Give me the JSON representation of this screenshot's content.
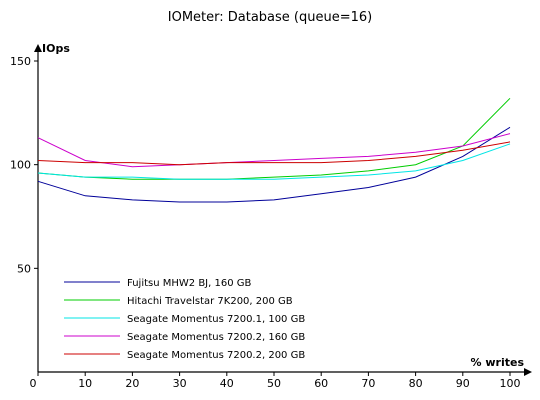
{
  "chart_data": {
    "type": "line",
    "title": "IOMeter: Database (queue=16)",
    "ylabel": "IOps",
    "xlabel": "% writes",
    "x": [
      0,
      10,
      20,
      30,
      40,
      50,
      60,
      70,
      80,
      90,
      100
    ],
    "xlim": [
      0,
      100
    ],
    "ylim": [
      0,
      150
    ],
    "x_ticks": [
      0,
      10,
      20,
      30,
      40,
      50,
      60,
      70,
      80,
      90,
      100
    ],
    "y_ticks": [
      50,
      100,
      150
    ],
    "grid": false,
    "legend_position": "bottom-left",
    "series": [
      {
        "name": "Fujitsu MHW2 BJ, 160 GB",
        "color": "#000099",
        "values": [
          92,
          85,
          83,
          82,
          82,
          83,
          86,
          89,
          94,
          104,
          118
        ]
      },
      {
        "name": "Hitachi Travelstar 7K200, 200 GB",
        "color": "#00cc00",
        "values": [
          96,
          94,
          93,
          93,
          93,
          94,
          95,
          97,
          100,
          109,
          132
        ]
      },
      {
        "name": "Seagate Momentus 7200.1, 100 GB",
        "color": "#00e5e5",
        "values": [
          96,
          94,
          94,
          93,
          93,
          93,
          94,
          95,
          97,
          102,
          110
        ]
      },
      {
        "name": "Seagate Momentus 7200.2, 160 GB",
        "color": "#cc00cc",
        "values": [
          113,
          102,
          99,
          100,
          101,
          102,
          103,
          104,
          106,
          109,
          115
        ]
      },
      {
        "name": "Seagate Momentus 7200.2, 200 GB",
        "color": "#cc0000",
        "values": [
          102,
          101,
          101,
          100,
          101,
          101,
          101,
          102,
          104,
          107,
          111
        ]
      }
    ]
  }
}
